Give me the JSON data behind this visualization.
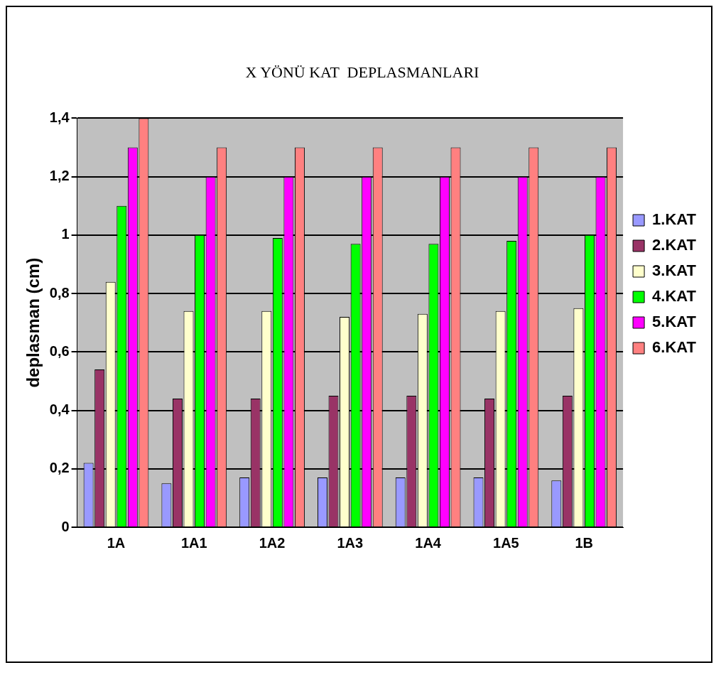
{
  "chart_data": {
    "type": "bar",
    "title": "X YÖNÜ KAT  DEPLASMANLARI",
    "ylabel": "deplasman (cm)",
    "categories": [
      "1A",
      "1A1",
      "1A2",
      "1A3",
      "1A4",
      "1A5",
      "1B"
    ],
    "series": [
      {
        "name": "1.KAT",
        "color": "#9999ff",
        "values": [
          0.22,
          0.15,
          0.17,
          0.17,
          0.17,
          0.17,
          0.16
        ]
      },
      {
        "name": "2.KAT",
        "color": "#993366",
        "values": [
          0.54,
          0.44,
          0.44,
          0.45,
          0.45,
          0.44,
          0.45
        ]
      },
      {
        "name": "3.KAT",
        "color": "#ffffcc",
        "values": [
          0.84,
          0.74,
          0.74,
          0.72,
          0.73,
          0.74,
          0.75
        ]
      },
      {
        "name": "4.KAT",
        "color": "#00ff00",
        "values": [
          1.1,
          1.0,
          0.99,
          0.97,
          0.97,
          0.98,
          1.0
        ]
      },
      {
        "name": "5.KAT",
        "color": "#ff00ff",
        "values": [
          1.3,
          1.2,
          1.2,
          1.2,
          1.2,
          1.2,
          1.2
        ]
      },
      {
        "name": "6.KAT",
        "color": "#ff8080",
        "values": [
          1.4,
          1.3,
          1.3,
          1.3,
          1.3,
          1.3,
          1.3
        ]
      }
    ],
    "ylim": [
      0,
      1.4
    ],
    "yticks": [
      {
        "value": 0,
        "label": "0"
      },
      {
        "value": 0.2,
        "label": "0,2"
      },
      {
        "value": 0.4,
        "label": "0,4"
      },
      {
        "value": 0.6,
        "label": "0,6"
      },
      {
        "value": 0.8,
        "label": "0,8"
      },
      {
        "value": 1,
        "label": "1"
      },
      {
        "value": 1.2,
        "label": "1,2"
      },
      {
        "value": 1.4,
        "label": "1,4"
      }
    ],
    "grid": "y",
    "legend": "right"
  }
}
